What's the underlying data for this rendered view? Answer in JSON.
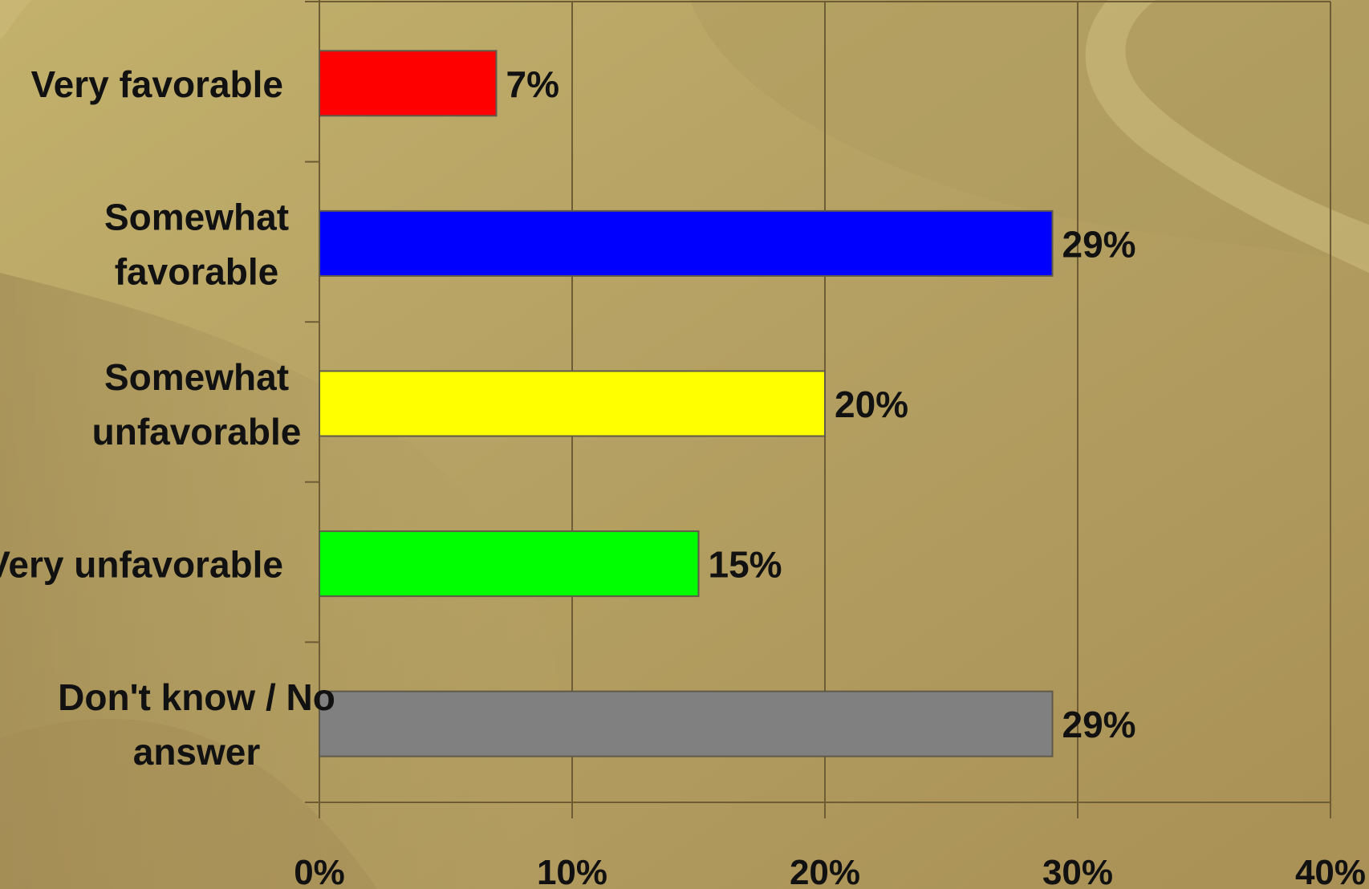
{
  "chart_data": {
    "type": "bar",
    "orientation": "horizontal",
    "categories": [
      [
        "Very favorable"
      ],
      [
        "Somewhat",
        "favorable"
      ],
      [
        "Somewhat",
        "unfavorable"
      ],
      [
        "Very unfavorable"
      ],
      [
        "Don't know / No",
        "answer"
      ]
    ],
    "values": [
      7,
      29,
      20,
      15,
      29
    ],
    "value_labels": [
      "7%",
      "29%",
      "20%",
      "15%",
      "29%"
    ],
    "bar_colors": [
      "#ff0000",
      "#0000ff",
      "#ffff00",
      "#00ff00",
      "#808080"
    ],
    "xlim": [
      0,
      40
    ],
    "xticks": [
      0,
      10,
      20,
      30,
      40
    ],
    "xtick_labels": [
      "0%",
      "10%",
      "20%",
      "30%",
      "40%"
    ],
    "grid": "vertical",
    "legend": "none",
    "title": "",
    "xlabel": "",
    "ylabel": ""
  }
}
